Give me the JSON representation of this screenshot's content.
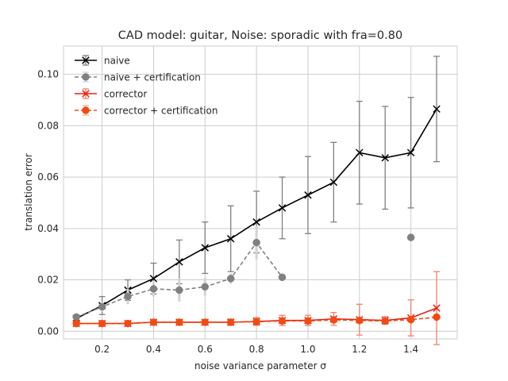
{
  "chart_data": {
    "type": "line",
    "title": "CAD model: guitar, Noise: sporadic with fra=0.80",
    "xlabel": "noise variance parameter σ",
    "ylabel": "translation error",
    "xlim": [
      0.05,
      1.58
    ],
    "ylim": [
      -0.003,
      0.111
    ],
    "xticks": [
      0.2,
      0.4,
      0.6,
      0.8,
      1.0,
      1.2,
      1.4
    ],
    "xtick_labels": [
      "0.2",
      "0.4",
      "0.6",
      "0.8",
      "1.0",
      "1.2",
      "1.4"
    ],
    "yticks": [
      0.0,
      0.02,
      0.04,
      0.06,
      0.08,
      0.1
    ],
    "ytick_labels": [
      "0.00",
      "0.02",
      "0.04",
      "0.06",
      "0.08",
      "0.10"
    ],
    "grid": true,
    "legend_position": "top-left",
    "series": [
      {
        "name": "naive",
        "color": "#000000",
        "error_color": "#808080",
        "marker": "x",
        "dashed": false,
        "x": [
          0.1,
          0.2,
          0.3,
          0.4,
          0.5,
          0.6,
          0.7,
          0.8,
          0.9,
          1.0,
          1.1,
          1.2,
          1.3,
          1.4,
          1.5
        ],
        "y": [
          0.005,
          0.01,
          0.016,
          0.0205,
          0.027,
          0.0325,
          0.036,
          0.0425,
          0.048,
          0.053,
          0.058,
          0.0695,
          0.0675,
          0.0695,
          0.0865
        ],
        "err": [
          0.001,
          0.0035,
          0.004,
          0.006,
          0.0085,
          0.01,
          0.0128,
          0.012,
          0.012,
          0.015,
          0.0155,
          0.02,
          0.02,
          0.0215,
          0.0205
        ]
      },
      {
        "name": "naive + certification",
        "color": "#808080",
        "error_color": "#d3d3d3",
        "marker": "o",
        "dashed": true,
        "x": [
          0.1,
          0.2,
          0.3,
          0.4,
          0.5,
          0.6,
          0.7,
          0.8,
          0.9,
          1.4
        ],
        "y": [
          0.0055,
          0.0095,
          0.0135,
          0.0165,
          0.016,
          0.0173,
          0.0205,
          0.0345,
          0.021,
          0.0365
        ],
        "err": [
          0.0005,
          0.002,
          0.003,
          0.003,
          0.0045,
          0.0035,
          0.002,
          0.0065,
          0.0,
          0.0
        ]
      },
      {
        "name": "corrector",
        "color": "#e8210e",
        "error_color": "#f08070",
        "marker": "x",
        "dashed": false,
        "x": [
          0.1,
          0.2,
          0.3,
          0.4,
          0.5,
          0.6,
          0.7,
          0.8,
          0.9,
          1.0,
          1.1,
          1.2,
          1.3,
          1.4,
          1.5
        ],
        "y": [
          0.003,
          0.003,
          0.003,
          0.0035,
          0.0035,
          0.0035,
          0.0035,
          0.0038,
          0.0042,
          0.0042,
          0.0048,
          0.0045,
          0.0042,
          0.0052,
          0.009
        ],
        "err": [
          0.0006,
          0.0007,
          0.0008,
          0.0009,
          0.001,
          0.001,
          0.0012,
          0.0015,
          0.002,
          0.002,
          0.0025,
          0.006,
          0.0015,
          0.007,
          0.0142
        ]
      },
      {
        "name": "corrector + certification",
        "color": "#f24a12",
        "error_color": "#f5b48c",
        "marker": "o",
        "dashed": true,
        "x": [
          0.1,
          0.2,
          0.3,
          0.4,
          0.5,
          0.6,
          0.7,
          0.8,
          0.9,
          1.0,
          1.1,
          1.2,
          1.3,
          1.4,
          1.5
        ],
        "y": [
          0.003,
          0.003,
          0.003,
          0.0035,
          0.0035,
          0.0035,
          0.0035,
          0.0037,
          0.004,
          0.004,
          0.0044,
          0.0042,
          0.004,
          0.0045,
          0.0055
        ],
        "err": [
          0.0005,
          0.0005,
          0.0005,
          0.0006,
          0.0006,
          0.0006,
          0.0007,
          0.0008,
          0.001,
          0.001,
          0.0015,
          0.0012,
          0.001,
          0.0015,
          0.001
        ]
      }
    ]
  }
}
